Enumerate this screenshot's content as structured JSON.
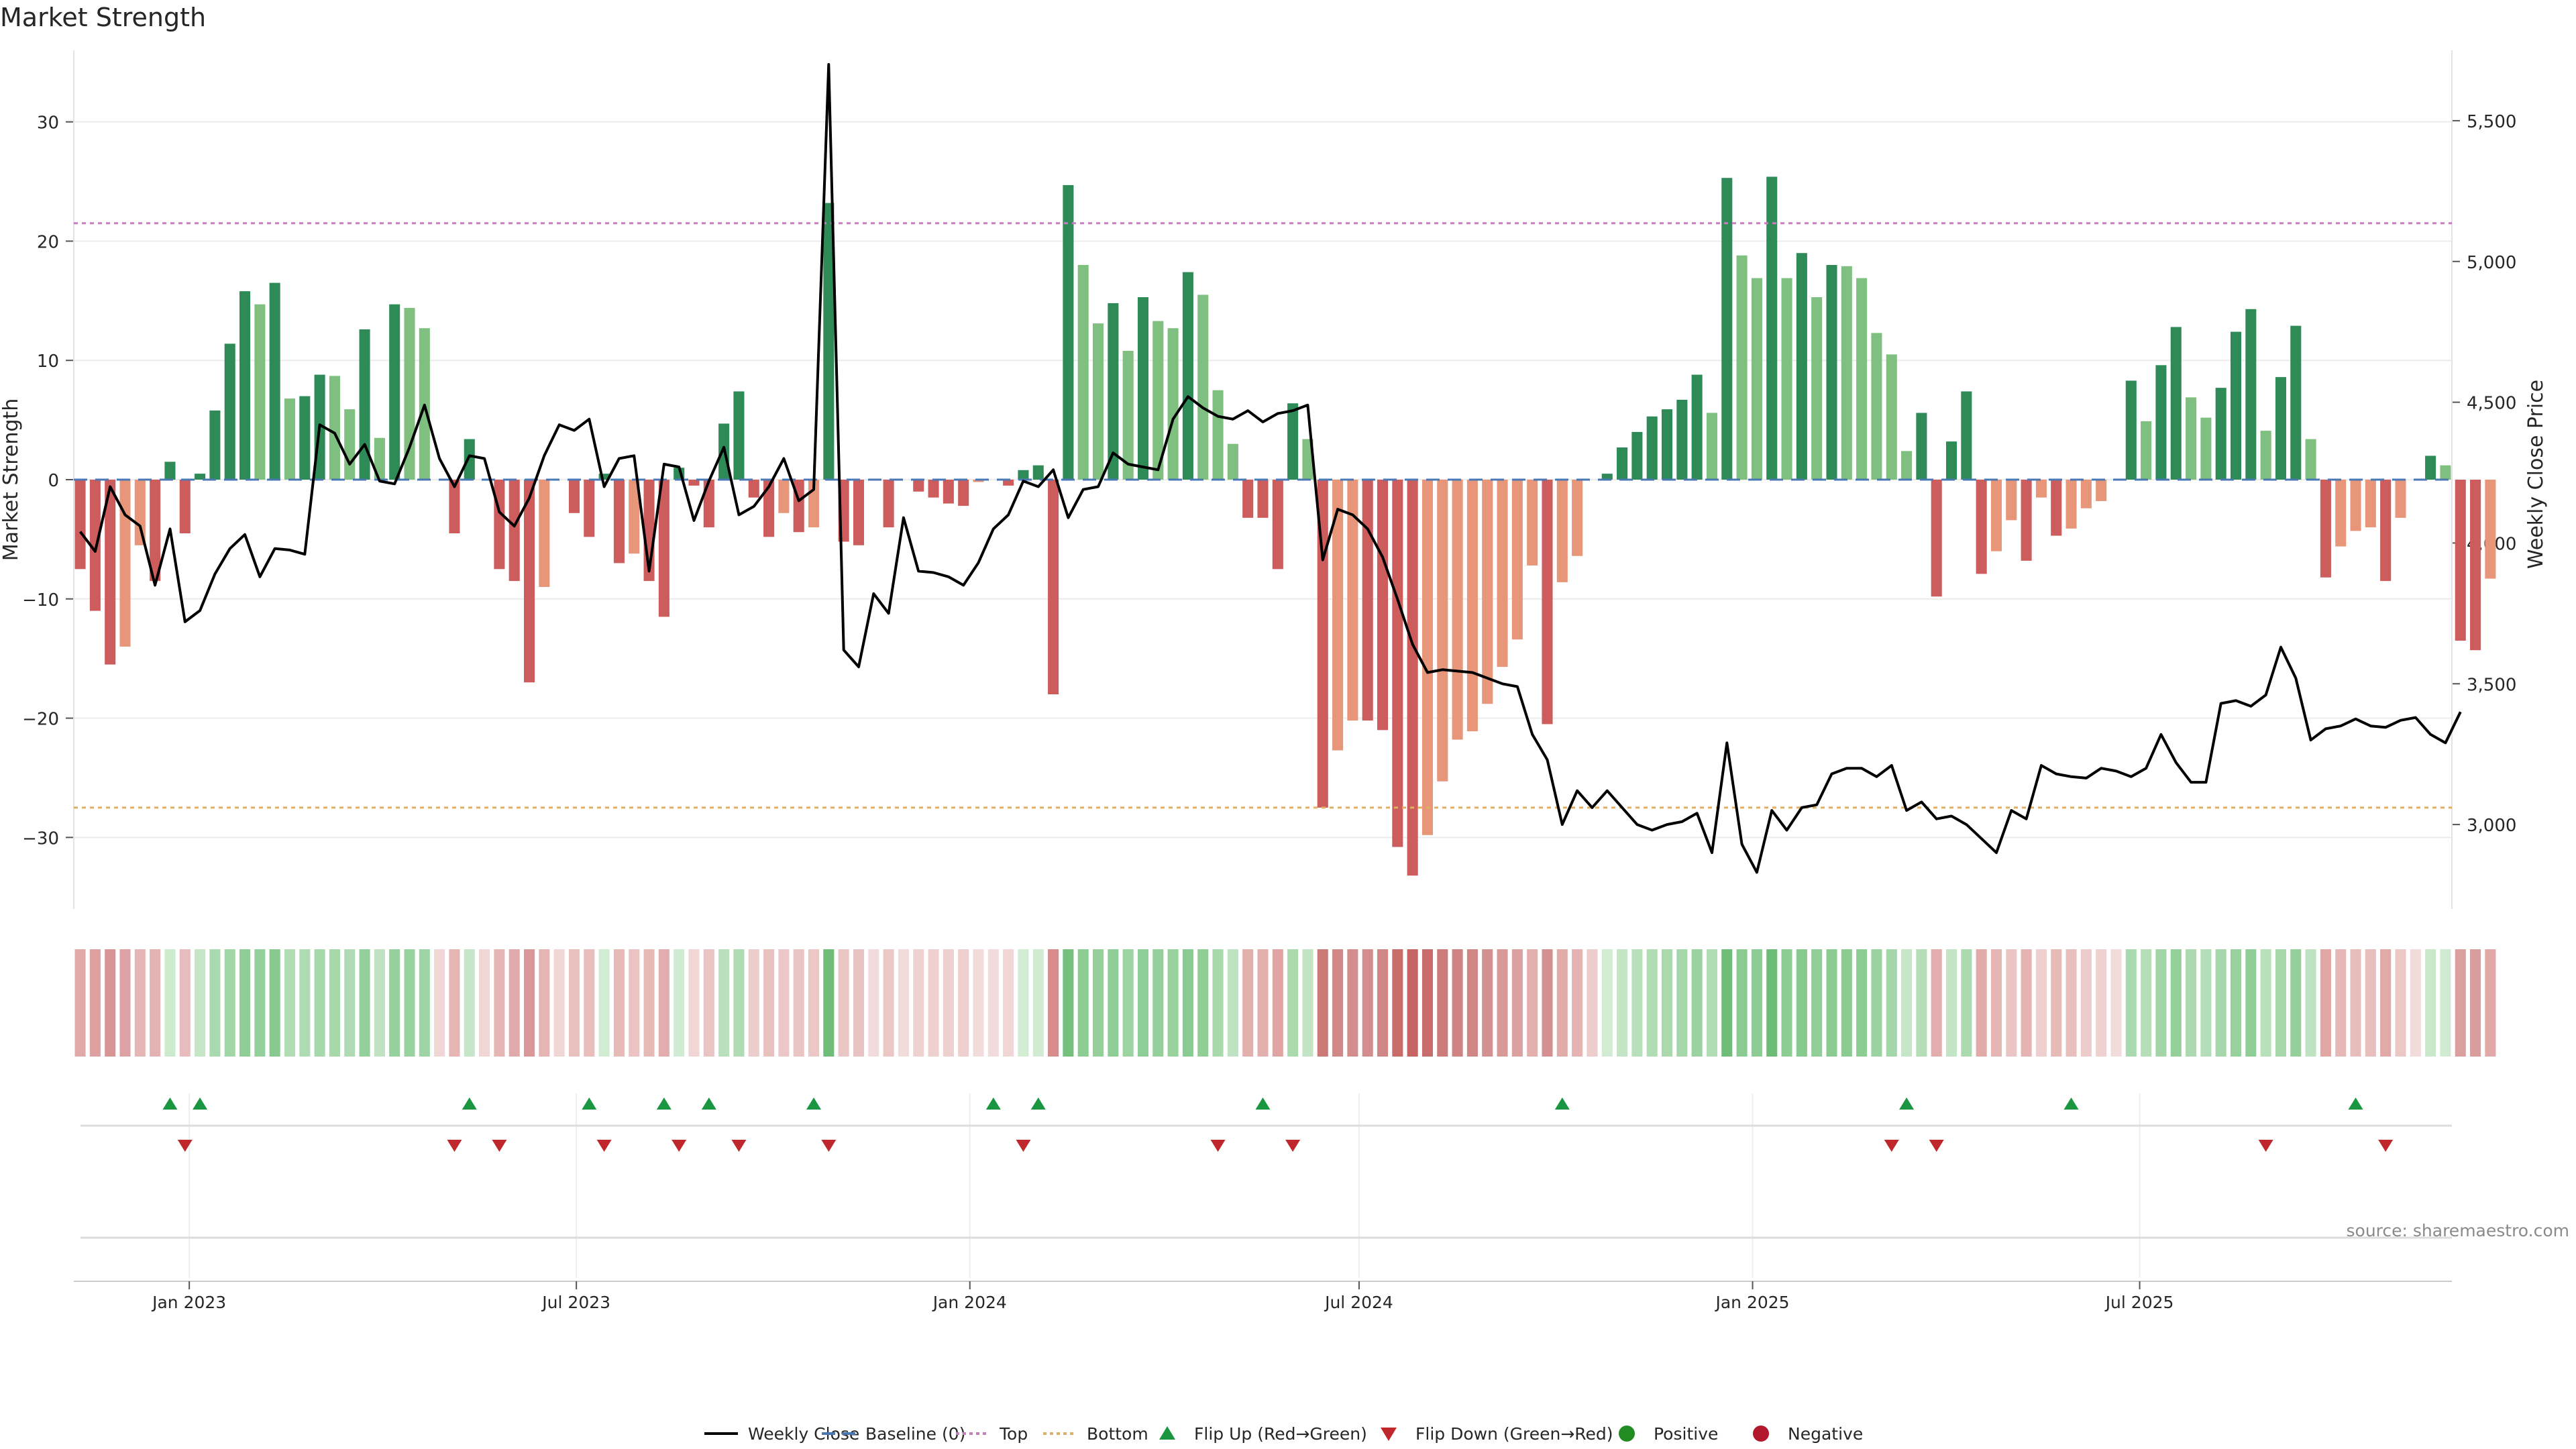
{
  "title": "Market Strength",
  "source": "source: sharemaestro.com",
  "chart_data": {
    "type": "bar",
    "title": "Market Strength",
    "ylabel": "Market Strength",
    "y2label": "Weekly Close Price",
    "ylim": [
      -36,
      36
    ],
    "y2lim": [
      2700,
      5750
    ],
    "yticks": [
      -30,
      -20,
      -10,
      0,
      10,
      20,
      30
    ],
    "y2ticks": [
      3000,
      3500,
      4000,
      4500,
      5000,
      5500
    ],
    "y2ticklabels": [
      "3,000",
      "3,500",
      "4,000",
      "4,500",
      "5,000",
      "5,500"
    ],
    "xlim": [
      "2022-11-08",
      "2025-11-24"
    ],
    "xticks": [
      "2023-01-01",
      "2023-07-01",
      "2024-01-01",
      "2024-07-01",
      "2025-01-01",
      "2025-07-01"
    ],
    "xticklabels": [
      "Jan 2023",
      "Jul 2023",
      "Jan 2024",
      "Jul 2024",
      "Jan 2025",
      "Jul 2025"
    ],
    "start_date": "2022-11-11",
    "top_line": 21.5,
    "bottom_line": -27.5,
    "grid": true,
    "legend_position": "bottom-center",
    "legend": [
      "Weekly Close",
      "Baseline (0)",
      "Top",
      "Bottom",
      "Flip Up (Red→Green)",
      "Flip Down (Green→Red)",
      "Positive",
      "Negative"
    ],
    "strength": [
      -7.5,
      -11,
      -15.5,
      -14,
      -5.5,
      -8.5,
      1.5,
      -4.5,
      0.5,
      5.8,
      11.4,
      15.8,
      14.7,
      16.5,
      6.8,
      7,
      8.8,
      8.7,
      5.9,
      12.6,
      3.5,
      14.7,
      14.4,
      12.7,
      0,
      -4.5,
      3.4,
      0,
      -7.5,
      -8.5,
      -17,
      -9,
      0,
      -2.8,
      -4.8,
      0.5,
      -7,
      -6.2,
      -8.5,
      -11.5,
      1,
      -0.5,
      -4,
      4.7,
      7.4,
      -1.5,
      -4.8,
      -2.8,
      -4.4,
      -4,
      23.2,
      -5.2,
      -5.5,
      0,
      -4,
      0,
      -1,
      -1.5,
      -2,
      -2.2,
      -0.2,
      0,
      -0.5,
      0.8,
      1.2,
      -18,
      24.7,
      18,
      13.1,
      14.8,
      10.8,
      15.3,
      13.3,
      12.7,
      17.4,
      15.5,
      7.5,
      3,
      -3.2,
      -3.2,
      -7.5,
      6.4,
      3.4,
      -27.5,
      -22.7,
      -20.2,
      -20.2,
      -21,
      -30.8,
      -33.2,
      -29.8,
      -25.3,
      -21.8,
      -21.1,
      -18.8,
      -15.7,
      -13.4,
      -7.2,
      -20.5,
      -8.6,
      -6.4,
      0,
      0.5,
      2.7,
      4,
      5.3,
      5.9,
      6.7,
      8.8,
      5.6,
      25.3,
      18.8,
      16.9,
      25.4,
      16.9,
      19,
      15.3,
      18,
      17.9,
      16.9,
      12.3,
      10.5,
      2.4,
      5.6,
      -9.8,
      3.2,
      7.4,
      -7.9,
      -6,
      -3.4,
      -6.8,
      -1.5,
      -4.7,
      -4.1,
      -2.4,
      -1.8,
      0,
      8.3,
      4.9,
      9.6,
      12.8,
      6.9,
      5.2,
      7.7,
      12.4,
      14.3,
      4.1,
      8.6,
      12.9,
      3.4,
      -8.2,
      -5.6,
      -4.3,
      -4,
      -8.5,
      -3.2,
      0,
      2,
      1.2,
      -13.5,
      -14.3,
      -8.3
    ],
    "close": [
      4040,
      3970,
      4200,
      4100,
      4060,
      3850,
      4050,
      3720,
      3760,
      3890,
      3980,
      4030,
      3880,
      3980,
      3975,
      3960,
      4420,
      4390,
      4280,
      4350,
      4220,
      4210,
      4340,
      4490,
      4300,
      4200,
      4310,
      4300,
      4110,
      4060,
      4160,
      4310,
      4420,
      4400,
      4440,
      4200,
      4300,
      4310,
      3900,
      4280,
      4270,
      4080,
      4220,
      4340,
      4100,
      4130,
      4200,
      4300,
      4150,
      4190,
      5700,
      3620,
      3560,
      3820,
      3750,
      4090,
      3900,
      3895,
      3880,
      3850,
      3930,
      4050,
      4100,
      4220,
      4200,
      4260,
      4090,
      4190,
      4200,
      4320,
      4280,
      4270,
      4260,
      4440,
      4520,
      4480,
      4450,
      4440,
      4470,
      4430,
      4460,
      4470,
      4490,
      3940,
      4120,
      4100,
      4050,
      3950,
      3800,
      3640,
      3540,
      3550,
      3545,
      3540,
      3520,
      3500,
      3490,
      3320,
      3230,
      3000,
      3120,
      3060,
      3120,
      3060,
      3000,
      2980,
      3000,
      3010,
      3040,
      2900,
      3290,
      2930,
      2830,
      3050,
      2980,
      3060,
      3070,
      3180,
      3200,
      3200,
      3170,
      3210,
      3050,
      3080,
      3020,
      3030,
      3000,
      2950,
      2900,
      3050,
      3020,
      3210,
      3180,
      3170,
      3165,
      3200,
      3190,
      3170,
      3200,
      3320,
      3220,
      3150,
      3150,
      3430,
      3440,
      3420,
      3460,
      3630,
      3520,
      3300,
      3340,
      3350,
      3375,
      3350,
      3345,
      3370,
      3380,
      3320,
      3290,
      3400
    ],
    "heat_colors": [
      "#e1a9a7",
      "#dea0a0",
      "#d89596",
      "#dca2a4",
      "#e6b6b4",
      "#e4b2b2",
      "#ccebcd",
      "#e8bcbc",
      "#c4e5c6",
      "#a9d9ae",
      "#a1d6a7",
      "#8fce97",
      "#94d09c",
      "#88c98f",
      "#b1ddb5",
      "#aedcb2",
      "#a6d8aa",
      "#a6d8aa",
      "#aedbb3",
      "#93cf9a",
      "#bfe2c2",
      "#96d19d",
      "#98d29e",
      "#9fd5a4",
      "#f0d6d4",
      "#e6b4b2",
      "#c6e6c9",
      "#f0d6d4",
      "#e5b6b4",
      "#e1aaaa",
      "#d99799",
      "#e5b5b4",
      "#f0d6d4",
      "#e9c1bf",
      "#e8bdbb",
      "#d2ecd3",
      "#e7b9b7",
      "#eac3c2",
      "#e6b8b6",
      "#e2adac",
      "#cfebd2",
      "#f0d6d4",
      "#e9c4c3",
      "#b8e0bb",
      "#afdcb3",
      "#eccdcb",
      "#e9c2c0",
      "#ebc8c7",
      "#eac4c3",
      "#ebc7c5",
      "#6fbd78",
      "#eac6c4",
      "#e9c3c1",
      "#f2dcdb",
      "#ebc8c6",
      "#f2dcdb",
      "#efd2d0",
      "#eed0ce",
      "#eed0ce",
      "#eecfcd",
      "#f2dcdb",
      "#f2dcdb",
      "#f0d6d4",
      "#d2edd4",
      "#d0ebd2",
      "#d88c8c",
      "#74c07d",
      "#8ccd93",
      "#95d09b",
      "#90ce97",
      "#9bd3a1",
      "#8fce96",
      "#95d09b",
      "#98d29d",
      "#8acb91",
      "#8fcf96",
      "#a7d9ac",
      "#bfe2c2",
      "#e4b0ae",
      "#e4b0ae",
      "#e0a4a3",
      "#abdaaf",
      "#c2e4c5",
      "#cb7a78",
      "#d18886",
      "#d38d8c",
      "#d38d8c",
      "#d08685",
      "#c96d6a",
      "#c56462",
      "#c86d6b",
      "#cc7b79",
      "#cf8382",
      "#d08685",
      "#d49090",
      "#d89a99",
      "#dba1a0",
      "#e3b0ae",
      "#d49091",
      "#e1abaa",
      "#e4b3b2",
      "#eccdcb",
      "#d2ecd4",
      "#c3e5c6",
      "#b8e0bb",
      "#b0ddb4",
      "#aad9ae",
      "#a5d7aa",
      "#9ad3a0",
      "#b1ddb5",
      "#6fbd78",
      "#8acb91",
      "#8dcd94",
      "#6ebd77",
      "#8dcd94",
      "#87ca8e",
      "#91ce98",
      "#8acb91",
      "#8acb91",
      "#8dcd94",
      "#9ad3a0",
      "#a3d6a8",
      "#c5e6c8",
      "#b3deb6",
      "#e2adac",
      "#c3e5c6",
      "#abdaaf",
      "#e1aaa9",
      "#e6b6b4",
      "#ebc5c3",
      "#e4b3b2",
      "#eed0ce",
      "#e7bab8",
      "#e9bfbd",
      "#edcbca",
      "#efd1cf",
      "#f2dcdb",
      "#a9d9ae",
      "#b6dfb9",
      "#a2d6a7",
      "#95d09b",
      "#add9b1",
      "#b4deb7",
      "#a5d7aa",
      "#97d19d",
      "#8fce96",
      "#b8e0bb",
      "#a7d8ac",
      "#95d09b",
      "#bfe2c2",
      "#e0a7a5",
      "#e5b7b5",
      "#e8bebd",
      "#e8bfbd",
      "#e1aaa9",
      "#ebc8c6",
      "#f2dcdb",
      "#c9e8cb",
      "#d0ebd2",
      "#daa0a0",
      "#d99d9d",
      "#e0a8a7"
    ],
    "flip_up_weeks": [
      6,
      8,
      26,
      34,
      39,
      42,
      49,
      61,
      64,
      79,
      99,
      122,
      133,
      152
    ],
    "flip_down_weeks": [
      7,
      25,
      28,
      35,
      40,
      44,
      50,
      63,
      76,
      81,
      121,
      124,
      146,
      154
    ],
    "positive_color": "#2e8b57",
    "negative_color": "#cd5c5c",
    "positive_weak_color": "#7fbf7f",
    "negative_weak_color": "#e8967a",
    "line_color": "#000000",
    "top_color": "#c77dc0",
    "bottom_color": "#e0b060",
    "baseline_color": "#4a78b5",
    "flip_up_color": "#1a9641",
    "flip_down_color": "#c0272d",
    "positive_marker_color": "#228b22",
    "negative_marker_color": "#b2182b"
  }
}
